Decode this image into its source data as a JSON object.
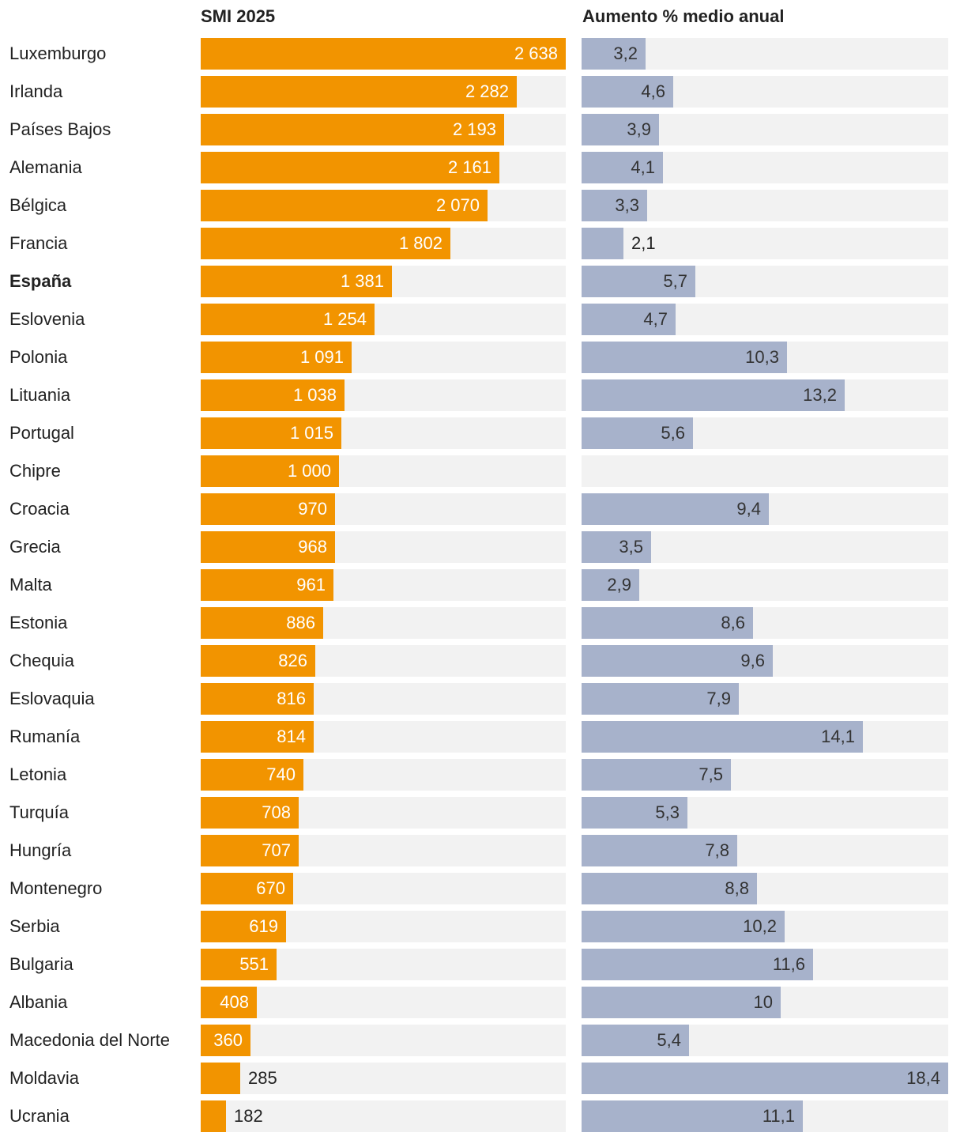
{
  "chart_data": {
    "type": "bar",
    "orientation": "horizontal",
    "categories": [
      "Luxemburgo",
      "Irlanda",
      "Países Bajos",
      "Alemania",
      "Bélgica",
      "Francia",
      "España",
      "Eslovenia",
      "Polonia",
      "Lituania",
      "Portugal",
      "Chipre",
      "Croacia",
      "Grecia",
      "Malta",
      "Estonia",
      "Chequia",
      "Eslovaquia",
      "Rumanía",
      "Letonia",
      "Turquía",
      "Hungría",
      "Montenegro",
      "Serbia",
      "Bulgaria",
      "Albania",
      "Macedonia del Norte",
      "Moldavia",
      "Ucrania"
    ],
    "highlight": "España",
    "series": [
      {
        "name": "SMI 2025",
        "color": "#f29400",
        "label_color": "#ffffff",
        "xlim": [
          0,
          2638
        ],
        "values": [
          2638,
          2282,
          2193,
          2161,
          2070,
          1802,
          1381,
          1254,
          1091,
          1038,
          1015,
          1000,
          970,
          968,
          961,
          886,
          826,
          816,
          814,
          740,
          708,
          707,
          670,
          619,
          551,
          408,
          360,
          285,
          182
        ],
        "labels": [
          "2 638",
          "2 282",
          "2 193",
          "2 161",
          "2 070",
          "1 802",
          "1 381",
          "1 254",
          "1 091",
          "1 038",
          "1 015",
          "1 000",
          "970",
          "968",
          "961",
          "886",
          "826",
          "816",
          "814",
          "740",
          "708",
          "707",
          "670",
          "619",
          "551",
          "408",
          "360",
          "285",
          "182"
        ]
      },
      {
        "name": "Aumento % medio anual",
        "color": "#a7b2cb",
        "label_color": "#333333",
        "xlim": [
          0,
          18.4
        ],
        "values": [
          3.2,
          4.6,
          3.9,
          4.1,
          3.3,
          2.1,
          5.7,
          4.7,
          10.3,
          13.2,
          5.6,
          null,
          9.4,
          3.5,
          2.9,
          8.6,
          9.6,
          7.9,
          14.1,
          7.5,
          5.3,
          7.8,
          8.8,
          10.2,
          11.6,
          10,
          5.4,
          18.4,
          11.1
        ],
        "labels": [
          "3,2",
          "4,6",
          "3,9",
          "4,1",
          "3,3",
          "2,1",
          "5,7",
          "4,7",
          "10,3",
          "13,2",
          "5,6",
          "",
          "9,4",
          "3,5",
          "2,9",
          "8,6",
          "9,6",
          "7,9",
          "14,1",
          "7,5",
          "5,3",
          "7,8",
          "8,8",
          "10,2",
          "11,6",
          "10",
          "5,4",
          "18,4",
          "11,1"
        ]
      }
    ]
  }
}
